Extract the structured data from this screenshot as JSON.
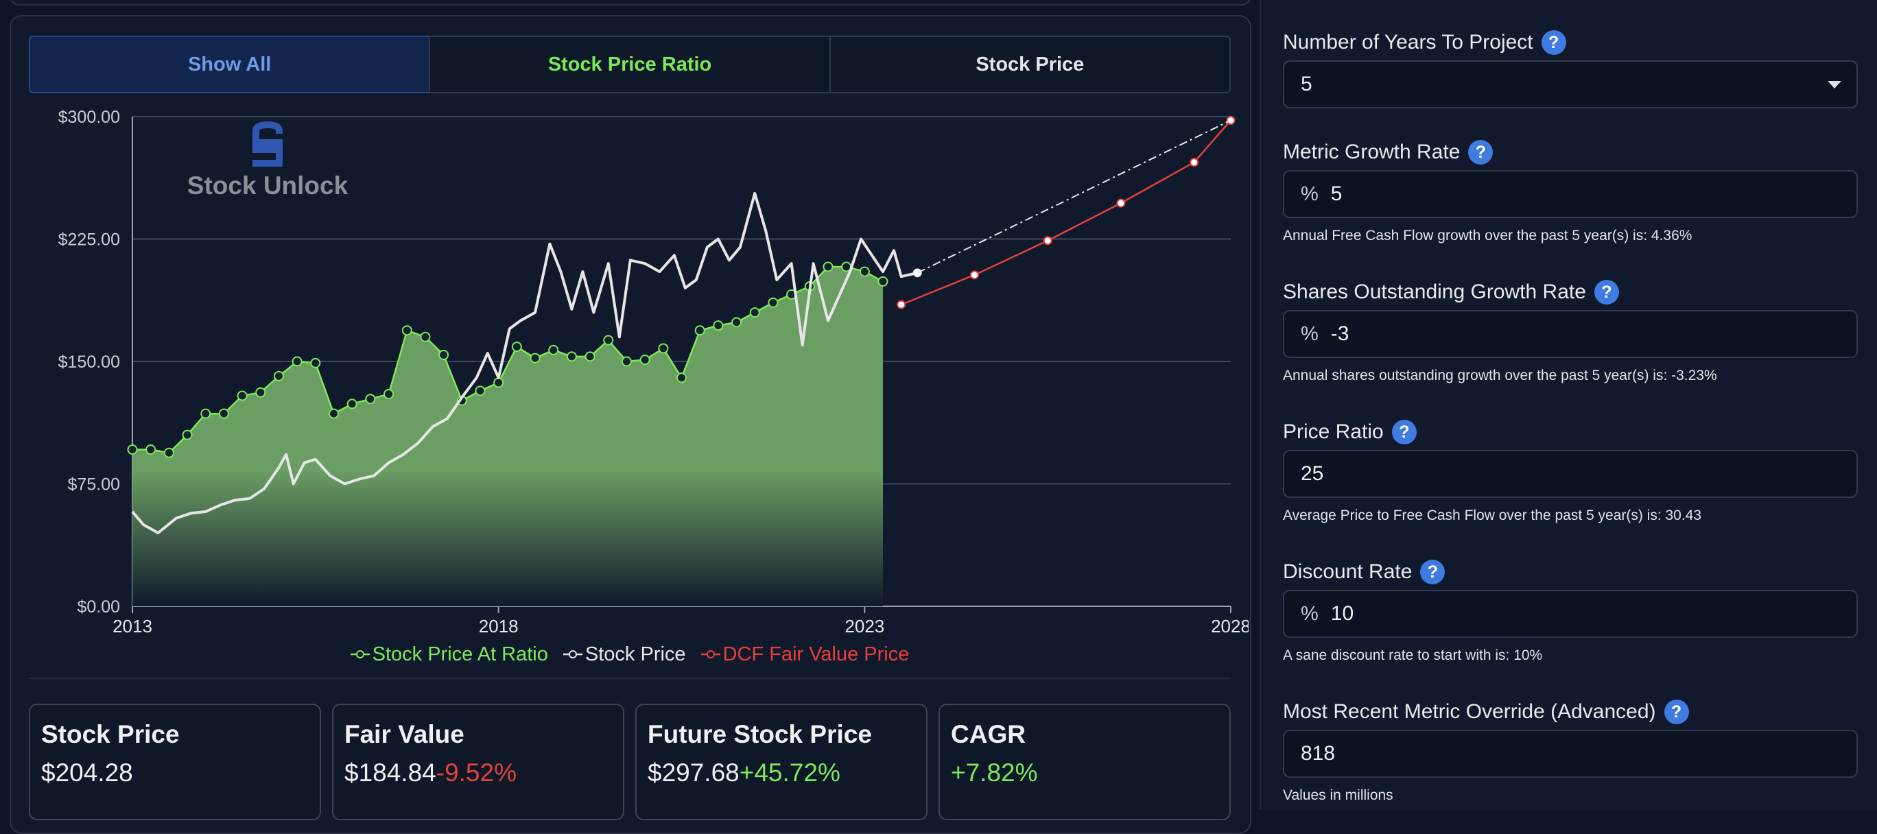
{
  "tabs": [
    "Show All",
    "Stock Price Ratio",
    "Stock Price"
  ],
  "watermark": "Stock Unlock",
  "legend": [
    {
      "label": "Stock Price At Ratio",
      "color": "#7bea5a"
    },
    {
      "label": "Stock Price",
      "color": "#e6e6e6"
    },
    {
      "label": "DCF Fair Value Price",
      "color": "#e5403b"
    }
  ],
  "chart_data": {
    "type": "line",
    "y_ticks": [
      "$0.00",
      "$75.00",
      "$150.00",
      "$225.00",
      "$300.00"
    ],
    "ylim": [
      0,
      300
    ],
    "x_ticks": [
      "2013",
      "2018",
      "2023",
      "2028"
    ],
    "xlim": [
      2013,
      2028
    ],
    "grid": "horizontal",
    "legend_position": "bottom-center",
    "series": [
      {
        "name": "Stock Price At Ratio",
        "color": "#7bea5a",
        "style": "area",
        "points": [
          [
            2013.0,
            96
          ],
          [
            2013.25,
            96
          ],
          [
            2013.5,
            94
          ],
          [
            2013.75,
            105
          ],
          [
            2014.0,
            118
          ],
          [
            2014.25,
            118
          ],
          [
            2014.5,
            129
          ],
          [
            2014.75,
            131
          ],
          [
            2015.0,
            141
          ],
          [
            2015.25,
            150
          ],
          [
            2015.5,
            149
          ],
          [
            2015.75,
            118
          ],
          [
            2016.0,
            124
          ],
          [
            2016.25,
            127
          ],
          [
            2016.5,
            130
          ],
          [
            2016.75,
            169
          ],
          [
            2017.0,
            165
          ],
          [
            2017.25,
            154
          ],
          [
            2017.5,
            126
          ],
          [
            2017.75,
            132
          ],
          [
            2018.0,
            137
          ],
          [
            2018.25,
            159
          ],
          [
            2018.5,
            152
          ],
          [
            2018.75,
            157
          ],
          [
            2019.0,
            153
          ],
          [
            2019.25,
            153
          ],
          [
            2019.5,
            163
          ],
          [
            2019.75,
            150
          ],
          [
            2020.0,
            151
          ],
          [
            2020.25,
            158
          ],
          [
            2020.5,
            140
          ],
          [
            2020.75,
            169
          ],
          [
            2021.0,
            172
          ],
          [
            2021.25,
            174
          ],
          [
            2021.5,
            180
          ],
          [
            2021.75,
            186
          ],
          [
            2022.0,
            191
          ],
          [
            2022.25,
            196
          ],
          [
            2022.5,
            208
          ],
          [
            2022.75,
            208
          ],
          [
            2023.0,
            205
          ],
          [
            2023.25,
            199
          ]
        ]
      },
      {
        "name": "Stock Price",
        "color": "#e6e6e6",
        "style": "line",
        "points": [
          [
            2013.0,
            58
          ],
          [
            2013.15,
            50
          ],
          [
            2013.35,
            45
          ],
          [
            2013.6,
            54
          ],
          [
            2013.8,
            57
          ],
          [
            2014.0,
            58
          ],
          [
            2014.2,
            62
          ],
          [
            2014.4,
            65
          ],
          [
            2014.6,
            66
          ],
          [
            2014.8,
            72
          ],
          [
            2015.0,
            85
          ],
          [
            2015.1,
            93
          ],
          [
            2015.2,
            75
          ],
          [
            2015.35,
            88
          ],
          [
            2015.5,
            90
          ],
          [
            2015.7,
            80
          ],
          [
            2015.9,
            75
          ],
          [
            2016.1,
            78
          ],
          [
            2016.3,
            80
          ],
          [
            2016.5,
            88
          ],
          [
            2016.7,
            93
          ],
          [
            2016.9,
            100
          ],
          [
            2017.1,
            110
          ],
          [
            2017.3,
            115
          ],
          [
            2017.5,
            128
          ],
          [
            2017.7,
            140
          ],
          [
            2017.85,
            155
          ],
          [
            2018.0,
            140
          ],
          [
            2018.15,
            170
          ],
          [
            2018.3,
            175
          ],
          [
            2018.5,
            180
          ],
          [
            2018.7,
            222
          ],
          [
            2018.85,
            205
          ],
          [
            2019.0,
            182
          ],
          [
            2019.15,
            205
          ],
          [
            2019.3,
            180
          ],
          [
            2019.5,
            210
          ],
          [
            2019.65,
            165
          ],
          [
            2019.8,
            212
          ],
          [
            2020.0,
            210
          ],
          [
            2020.2,
            205
          ],
          [
            2020.4,
            215
          ],
          [
            2020.55,
            195
          ],
          [
            2020.7,
            200
          ],
          [
            2020.85,
            220
          ],
          [
            2021.0,
            225
          ],
          [
            2021.15,
            212
          ],
          [
            2021.3,
            220
          ],
          [
            2021.5,
            253
          ],
          [
            2021.65,
            230
          ],
          [
            2021.8,
            200
          ],
          [
            2022.0,
            210
          ],
          [
            2022.15,
            160
          ],
          [
            2022.3,
            210
          ],
          [
            2022.5,
            175
          ],
          [
            2022.65,
            190
          ],
          [
            2022.8,
            205
          ],
          [
            2022.95,
            225
          ],
          [
            2023.1,
            215
          ],
          [
            2023.25,
            205
          ],
          [
            2023.4,
            218
          ],
          [
            2023.5,
            202
          ],
          [
            2023.72,
            204.28
          ]
        ]
      },
      {
        "name": "DCF Fair Value Price",
        "color": "#e5403b",
        "style": "line",
        "points": [
          [
            2023.5,
            184.84
          ],
          [
            2024.5,
            203
          ],
          [
            2025.5,
            224
          ],
          [
            2026.5,
            247
          ],
          [
            2027.5,
            272
          ],
          [
            2028.0,
            297.68
          ]
        ]
      },
      {
        "name": "Projection",
        "color": "#e6e6e6",
        "style": "dashed",
        "points": [
          [
            2023.72,
            204.28
          ],
          [
            2028.0,
            297.68
          ]
        ]
      }
    ]
  },
  "stats": [
    {
      "title": "Stock Price",
      "value": "$204.28",
      "change": ""
    },
    {
      "title": "Fair Value",
      "value": "$184.84",
      "change": "-9.52%"
    },
    {
      "title": "Future Stock Price",
      "value": "$297.68",
      "change": "+45.72%"
    },
    {
      "title": "CAGR",
      "value": "",
      "change": "+7.82%"
    }
  ],
  "form": {
    "years": {
      "label": "Number of Years To Project",
      "value": "5"
    },
    "metric_growth": {
      "label": "Metric Growth Rate",
      "prefix": "%",
      "value": "5",
      "hint": "Annual Free Cash Flow growth over the past 5 year(s) is: 4.36%"
    },
    "shares_growth": {
      "label": "Shares Outstanding Growth Rate",
      "prefix": "%",
      "value": "-3",
      "hint": "Annual shares outstanding growth over the past 5 year(s) is: -3.23%"
    },
    "price_ratio": {
      "label": "Price Ratio",
      "value": "25",
      "hint": "Average Price to Free Cash Flow over the past 5 year(s) is: 30.43"
    },
    "discount": {
      "label": "Discount Rate",
      "prefix": "%",
      "value": "10",
      "hint": "A sane discount rate to start with is: 10%"
    },
    "metric_override": {
      "label": "Most Recent Metric Override (Advanced)",
      "value": "818",
      "hint": "Values in millions"
    },
    "help_glyph": "?"
  }
}
